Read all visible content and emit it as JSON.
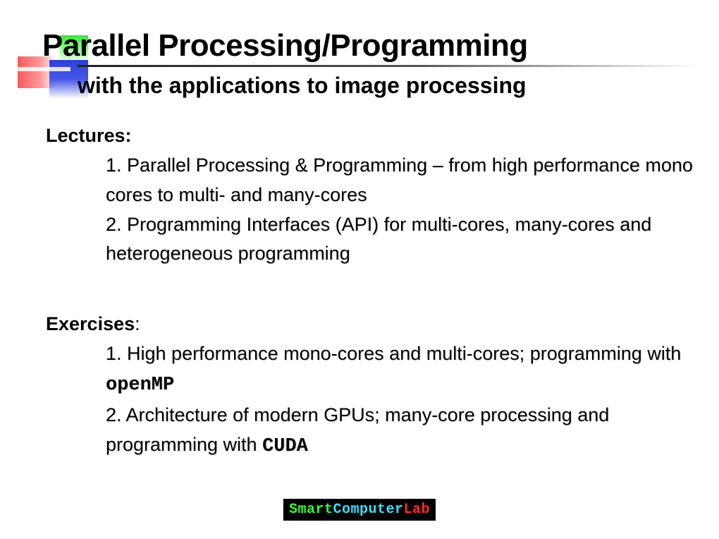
{
  "title": "Parallel Processing/Programming",
  "subtitle": "with the applications to image processing",
  "lectures": {
    "heading": "Lectures:",
    "item1": "1. Parallel Processing & Programming – from high performance mono cores to multi- and many-cores",
    "item2": "2. Programming Interfaces (API) for multi-cores, many-cores and heterogeneous programming"
  },
  "exercises": {
    "heading_bold": "Exercises",
    "heading_tail": ":",
    "item1_pre": "1. High performance mono-cores and multi-cores; programming with ",
    "item1_code": "openMP",
    "item2_pre": "2. Architecture of modern GPUs; many-core processing and programming with ",
    "item2_code": "CUDA"
  },
  "logo": {
    "part1": "Smart",
    "part2": "Computer",
    "part3": "Lab"
  },
  "colors": {
    "logo_green": "#2fff2f",
    "logo_cyan": "#33e0ff",
    "logo_red": "#ff2a2a",
    "decor_green": "#3fe03f",
    "decor_blue": "#2b3fd6",
    "decor_red": "#f85a5a"
  }
}
